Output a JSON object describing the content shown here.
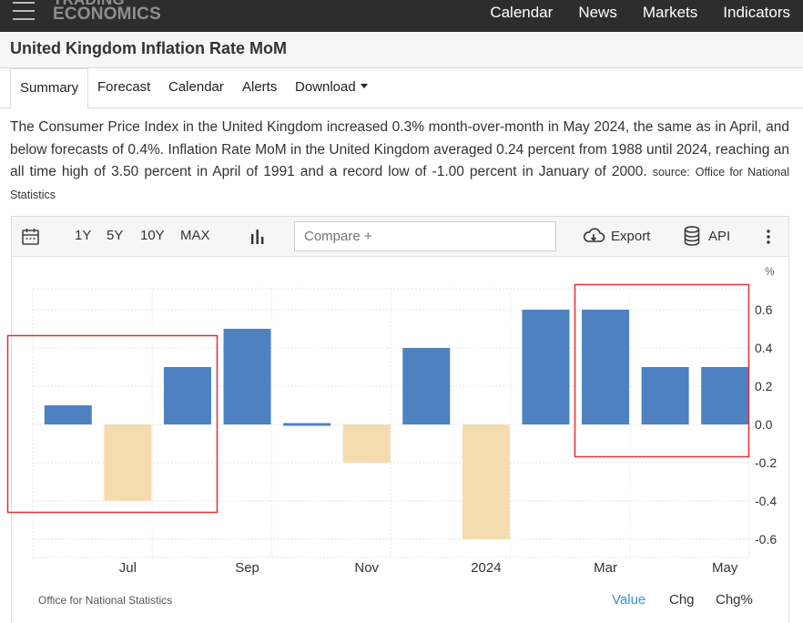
{
  "nav": {
    "logo_line1": "TRADING",
    "logo_line2": "ECONOMICS",
    "items": [
      "Calendar",
      "News",
      "Markets",
      "Indicators"
    ]
  },
  "page_title": "United Kingdom Inflation Rate MoM",
  "tabs": [
    "Summary",
    "Forecast",
    "Calendar",
    "Alerts",
    "Download"
  ],
  "summary": {
    "text": "The Consumer Price Index in the United Kingdom increased 0.3% month-over-month in May 2024, the same as in April, and below forecasts of 0.4%. Inflation Rate MoM in the United Kingdom averaged 0.24 percent from 1988 until 2024, reaching an all time high of 3.50 percent in April of 1991 and a record low of -1.00 percent in January of 2000.",
    "source_label": "source:",
    "source_name": "Office for National Statistics"
  },
  "toolbar": {
    "ranges": [
      "1Y",
      "5Y",
      "10Y",
      "MAX"
    ],
    "compare_placeholder": "Compare +",
    "export_label": "Export",
    "api_label": "API"
  },
  "footer": {
    "source": "Office for National Statistics",
    "value_label": "Value",
    "chg_label": "Chg",
    "chgpct_label": "Chg%"
  },
  "colors": {
    "positive": "#4d81c0",
    "negative": "#f5dcb0",
    "accent": "#3a8fd8",
    "highlight": "#e03030"
  },
  "chart_data": {
    "type": "bar",
    "unit": "%",
    "months": [
      "2023-06",
      "2023-07",
      "2023-08",
      "2023-09",
      "2023-10",
      "2023-11",
      "2023-12",
      "2024-01",
      "2024-02",
      "2024-03",
      "2024-04",
      "2024-05"
    ],
    "values": [
      0.1,
      -0.4,
      0.3,
      0.5,
      0.0,
      -0.2,
      0.4,
      -0.6,
      0.6,
      0.6,
      0.3,
      0.3
    ],
    "x_tick_labels": [
      "Jul",
      "Sep",
      "Nov",
      "2024",
      "Mar",
      "May"
    ],
    "y_ticks": [
      0.6,
      0.4,
      0.2,
      0.0,
      -0.2,
      -0.4,
      -0.6
    ],
    "ylim": [
      -0.7,
      0.7
    ],
    "grid": true,
    "y_axis_position": "right"
  }
}
